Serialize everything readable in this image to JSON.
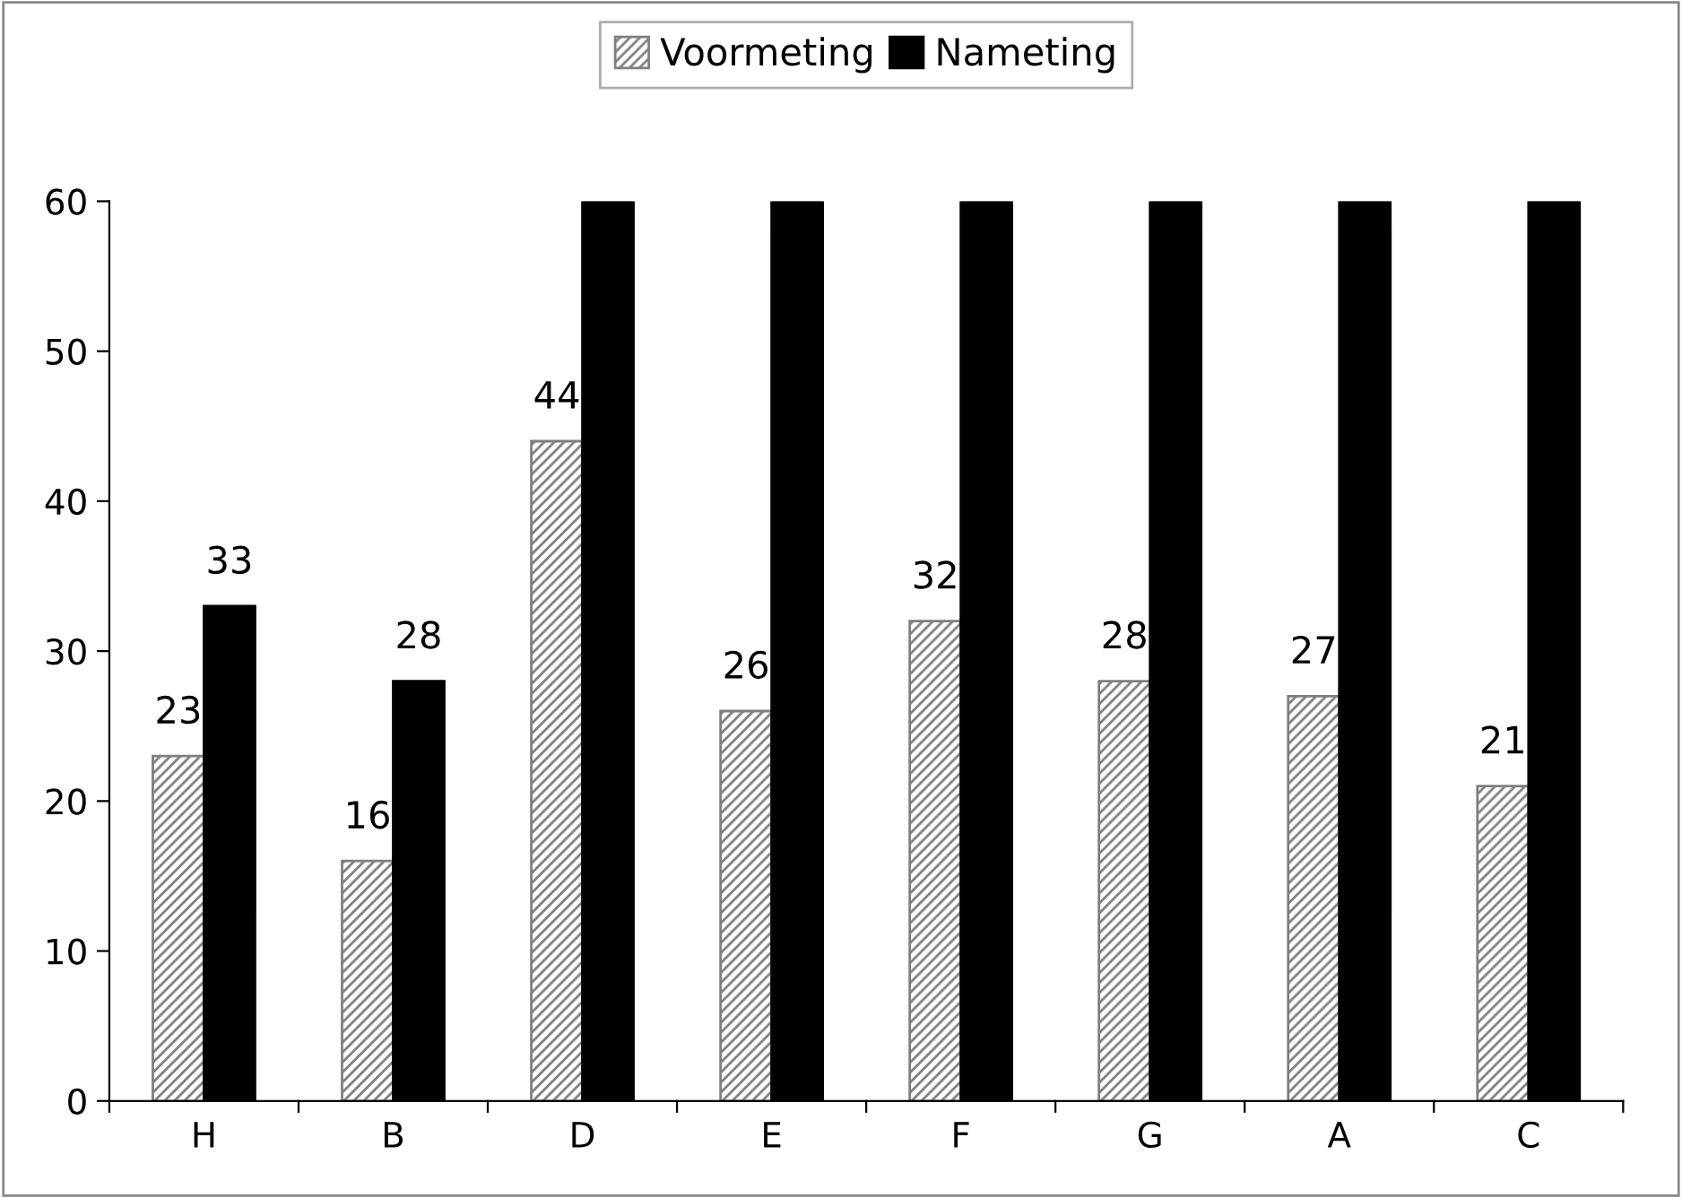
{
  "chart_data": {
    "type": "bar",
    "categories": [
      "H",
      "B",
      "D",
      "E",
      "F",
      "G",
      "A",
      "C"
    ],
    "series": [
      {
        "name": "Voormeting",
        "color": "#7f7f7f",
        "values": [
          23,
          16,
          44,
          26,
          32,
          28,
          27,
          21
        ],
        "value_labels": [
          "23",
          "16",
          "44",
          "26",
          "32",
          "28",
          "27",
          "21"
        ]
      },
      {
        "name": "Nameting",
        "color": "#000000",
        "values": [
          33,
          28,
          60,
          60,
          60,
          60,
          60,
          60
        ],
        "value_labels": [
          "33",
          "28",
          null,
          null,
          null,
          null,
          null,
          null
        ]
      }
    ],
    "ylim": [
      0,
      60
    ],
    "yticks": [
      0,
      10,
      20,
      30,
      40,
      50,
      60
    ],
    "grid": false,
    "legend": "top"
  }
}
